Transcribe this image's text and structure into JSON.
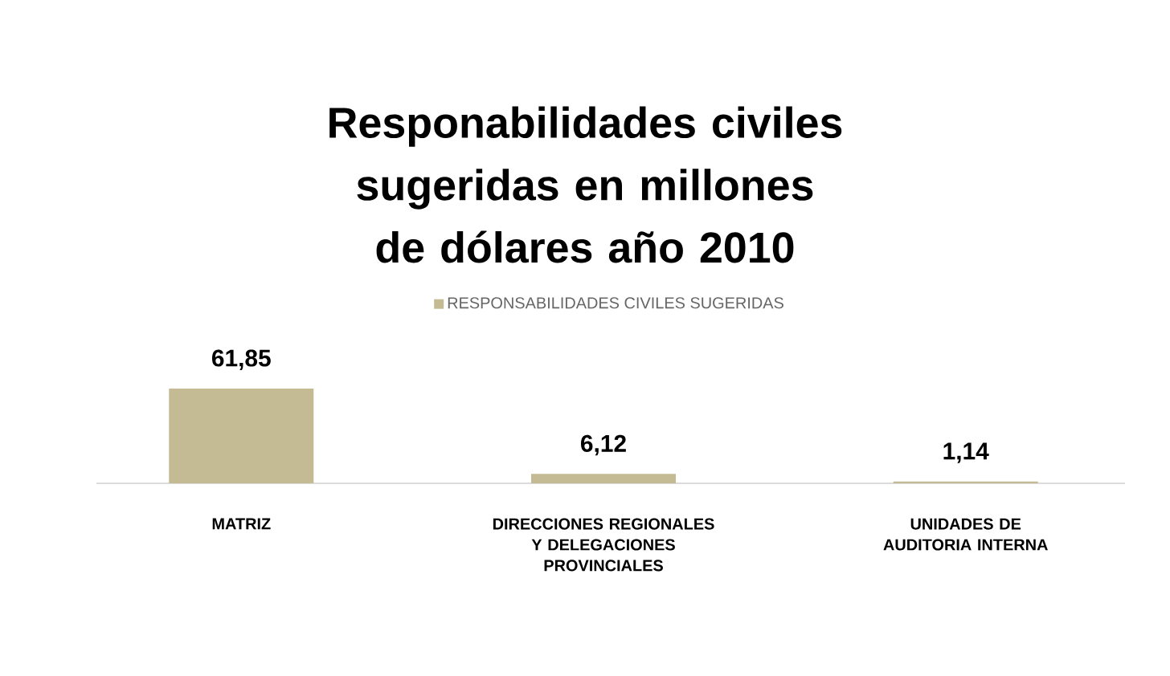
{
  "chart_data": {
    "type": "bar",
    "title": "Responabilidades civiles sugeridas en millones de dólares año 2010",
    "categories": [
      "MATRIZ",
      "DIRECCIONES REGIONALES Y DELEGACIONES PROVINCIALES",
      "UNIDADES DE AUDITORIA INTERNA"
    ],
    "series": [
      {
        "name": "RESPONSABILIDADES CIVILES SUGERIDAS",
        "color": "#c4bb95",
        "values": [
          61.85,
          6.12,
          1.14
        ],
        "value_labels": [
          "61,85",
          "6,12",
          "1,14"
        ]
      }
    ],
    "legend": "top"
  }
}
